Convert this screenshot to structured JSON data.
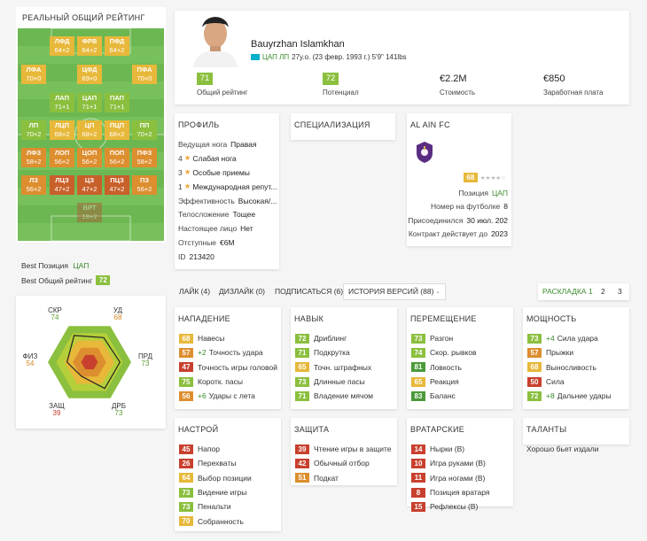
{
  "left": {
    "title": "РЕАЛЬНЫЙ ОБЩИЙ РЕЙТИНГ",
    "positions": [
      {
        "code": "ЛФД",
        "val": "64+2",
        "color": "#e7b83a"
      },
      {
        "code": "ФРВ",
        "val": "64+2",
        "color": "#e7b83a"
      },
      {
        "code": "ПФД",
        "val": "64+2",
        "color": "#e7b83a"
      },
      {
        "code": "ЛФА",
        "val": "70+0",
        "color": "#e7b83a"
      },
      {
        "code": "ЦФД",
        "val": "69+0",
        "color": "#e7b83a"
      },
      {
        "code": "ПФА",
        "val": "70+0",
        "color": "#e7b83a"
      },
      {
        "code": "ЛАП",
        "val": "71+1",
        "color": "#8bbf3e"
      },
      {
        "code": "ЦАП",
        "val": "71+1",
        "color": "#8bbf3e"
      },
      {
        "code": "ПАП",
        "val": "71+1",
        "color": "#8bbf3e"
      },
      {
        "code": "ЛП",
        "val": "70+2",
        "color": "#8bbf3e"
      },
      {
        "code": "ЛЦП",
        "val": "68+2",
        "color": "#e7b83a"
      },
      {
        "code": "ЦП",
        "val": "68+2",
        "color": "#e7b83a"
      },
      {
        "code": "ПЦП",
        "val": "68+2",
        "color": "#e7b83a"
      },
      {
        "code": "ПП",
        "val": "70+2",
        "color": "#8bbf3e"
      },
      {
        "code": "ЛФЗ",
        "val": "58+2",
        "color": "#dd8e2e"
      },
      {
        "code": "ЛОП",
        "val": "56+2",
        "color": "#dd8e2e"
      },
      {
        "code": "ЦОП",
        "val": "56+2",
        "color": "#dd8e2e"
      },
      {
        "code": "ПОП",
        "val": "56+2",
        "color": "#dd8e2e"
      },
      {
        "code": "ПФЗ",
        "val": "58+2",
        "color": "#dd8e2e"
      },
      {
        "code": "ЛЗ",
        "val": "56+2",
        "color": "#dd8e2e"
      },
      {
        "code": "ЛЦЗ",
        "val": "47+2",
        "color": "#c8602a"
      },
      {
        "code": "ЦЗ",
        "val": "47+2",
        "color": "#c8602a"
      },
      {
        "code": "ПЦЗ",
        "val": "47+2",
        "color": "#c8602a"
      },
      {
        "code": "ПЗ",
        "val": "56+2",
        "color": "#dd8e2e"
      },
      {
        "code": "ВРТ",
        "val": "18+2",
        "color": "#c0392b"
      }
    ],
    "best_pos_label": "Best Позиция",
    "best_pos": "ЦАП",
    "best_ovr_label": "Best Общий рейтинг",
    "best_ovr": "72",
    "radar": [
      {
        "code": "СКР",
        "val": "74"
      },
      {
        "code": "УД",
        "val": "68"
      },
      {
        "code": "ПРД",
        "val": "73"
      },
      {
        "code": "ДРБ",
        "val": "73"
      },
      {
        "code": "ЗАЩ",
        "val": "39"
      },
      {
        "code": "ФИЗ",
        "val": "54"
      }
    ]
  },
  "player": {
    "name": "Bauyrzhan Islamkhan",
    "flag_color": "#00afca",
    "position": "ЦАП ЛП",
    "info": "27y.o. (23 февр. 1993 г.) 5'9\" 141lbs",
    "stats": [
      {
        "value": "71",
        "label": "Общий рейтинг",
        "box": true,
        "color": "#8bbf3e"
      },
      {
        "value": "72",
        "label": "Потенциал",
        "box": true,
        "color": "#8bbf3e"
      },
      {
        "value": "€2.2M",
        "label": "Стоимость",
        "box": false
      },
      {
        "value": "€850",
        "label": "Заработная плата",
        "box": false
      }
    ]
  },
  "profile": {
    "title": "ПРОФИЛЬ",
    "rows": [
      {
        "k": "Ведущая нога",
        "v": "Правая"
      },
      {
        "num": "4",
        "star": "★",
        "v": "Слабая нога"
      },
      {
        "num": "3",
        "star": "★",
        "v": "Особые приемы"
      },
      {
        "num": "1",
        "star": "★",
        "v": "Международная репут..."
      },
      {
        "k": "Эффективность",
        "v": "Высокая/..."
      },
      {
        "k": "Телосложение",
        "v": "Тощее"
      },
      {
        "k": "Настоящее лицо",
        "v": "Нет"
      },
      {
        "k": "Отступные",
        "v": "€6M"
      },
      {
        "k": "ID",
        "v": "213420"
      }
    ]
  },
  "spec": {
    "title": "СПЕЦИАЛИЗАЦИЯ"
  },
  "club": {
    "title": "AL AIN FC",
    "rating": "68",
    "stars": "★★★★☆",
    "rows": [
      {
        "k": "Позиция",
        "v": "ЦАП",
        "green": true
      },
      {
        "k": "Номер на футболке",
        "v": "8"
      },
      {
        "k": "Присоединился",
        "v": "30 июл. 202"
      },
      {
        "k": "Контракт действует до",
        "v": "2023"
      }
    ]
  },
  "tabs": {
    "like": "ЛАЙК (4)",
    "dislike": "ДИЗЛАЙК (0)",
    "subscribe": "ПОДПИСАТЬСЯ (6)",
    "history": "ИСТОРИЯ ВЕРСИЙ (88)",
    "layout": "РАСКЛАДКА 1",
    "p2": "2",
    "p3": "3"
  },
  "attrs": [
    {
      "title": "НАПАДЕНИЕ",
      "items": [
        {
          "v": "68",
          "c": "#e7b83a",
          "n": "Навесы"
        },
        {
          "v": "57",
          "c": "#dd8e2e",
          "p": "+2",
          "n": "Точность удара"
        },
        {
          "v": "47",
          "c": "#c8402e",
          "n": "Точность игры головой"
        },
        {
          "v": "75",
          "c": "#8bbf3e",
          "n": "Коротк. пасы"
        },
        {
          "v": "56",
          "c": "#dd8e2e",
          "p": "+6",
          "n": "Удары с лета"
        }
      ]
    },
    {
      "title": "НАВЫК",
      "items": [
        {
          "v": "72",
          "c": "#8bbf3e",
          "n": "Дриблинг"
        },
        {
          "v": "71",
          "c": "#8bbf3e",
          "n": "Подкрутка"
        },
        {
          "v": "65",
          "c": "#e7b83a",
          "n": "Точн. штрафных"
        },
        {
          "v": "73",
          "c": "#8bbf3e",
          "n": "Длинные пасы"
        },
        {
          "v": "71",
          "c": "#8bbf3e",
          "n": "Владение мячом"
        }
      ]
    },
    {
      "title": "ПЕРЕМЕЩЕНИЕ",
      "items": [
        {
          "v": "73",
          "c": "#8bbf3e",
          "n": "Разгон"
        },
        {
          "v": "74",
          "c": "#8bbf3e",
          "n": "Скор. рывков"
        },
        {
          "v": "81",
          "c": "#4a9a3a",
          "n": "Ловкость"
        },
        {
          "v": "65",
          "c": "#e7b83a",
          "n": "Реакция"
        },
        {
          "v": "83",
          "c": "#4a9a3a",
          "n": "Баланс"
        }
      ]
    },
    {
      "title": "МОЩНОСТЬ",
      "items": [
        {
          "v": "73",
          "c": "#8bbf3e",
          "p": "+4",
          "n": "Сила удара"
        },
        {
          "v": "57",
          "c": "#dd8e2e",
          "n": "Прыжки"
        },
        {
          "v": "68",
          "c": "#e7b83a",
          "n": "Выносливость"
        },
        {
          "v": "50",
          "c": "#c8402e",
          "n": "Сила"
        },
        {
          "v": "72",
          "c": "#8bbf3e",
          "p": "+8",
          "n": "Дальние удары"
        }
      ]
    },
    {
      "title": "НАСТРОЙ",
      "items": [
        {
          "v": "45",
          "c": "#c8402e",
          "n": "Напор"
        },
        {
          "v": "26",
          "c": "#c8402e",
          "n": "Перехваты"
        },
        {
          "v": "64",
          "c": "#e7b83a",
          "n": "Выбор позиции"
        },
        {
          "v": "73",
          "c": "#8bbf3e",
          "n": "Видение игры"
        },
        {
          "v": "73",
          "c": "#8bbf3e",
          "n": "Пенальти"
        },
        {
          "v": "70",
          "c": "#e7b83a",
          "n": "Собранность"
        }
      ]
    },
    {
      "title": "ЗАЩИТА",
      "items": [
        {
          "v": "39",
          "c": "#c8402e",
          "n": "Чтение игры в защите"
        },
        {
          "v": "42",
          "c": "#c8402e",
          "n": "Обычный отбор"
        },
        {
          "v": "51",
          "c": "#dd8e2e",
          "n": "Подкат"
        }
      ]
    },
    {
      "title": "ВРАТАРСКИЕ",
      "items": [
        {
          "v": "14",
          "c": "#c8402e",
          "n": "Нырки (В)"
        },
        {
          "v": "10",
          "c": "#c8402e",
          "n": "Игра руками (В)"
        },
        {
          "v": "11",
          "c": "#c8402e",
          "n": "Игра ногами (В)"
        },
        {
          "v": "8",
          "c": "#c8402e",
          "n": "Позиция вратаря"
        },
        {
          "v": "15",
          "c": "#c8402e",
          "n": "Рефлексы (В)"
        }
      ]
    },
    {
      "title": "ТАЛАНТЫ",
      "text": "Хорошо бьет издали"
    }
  ]
}
